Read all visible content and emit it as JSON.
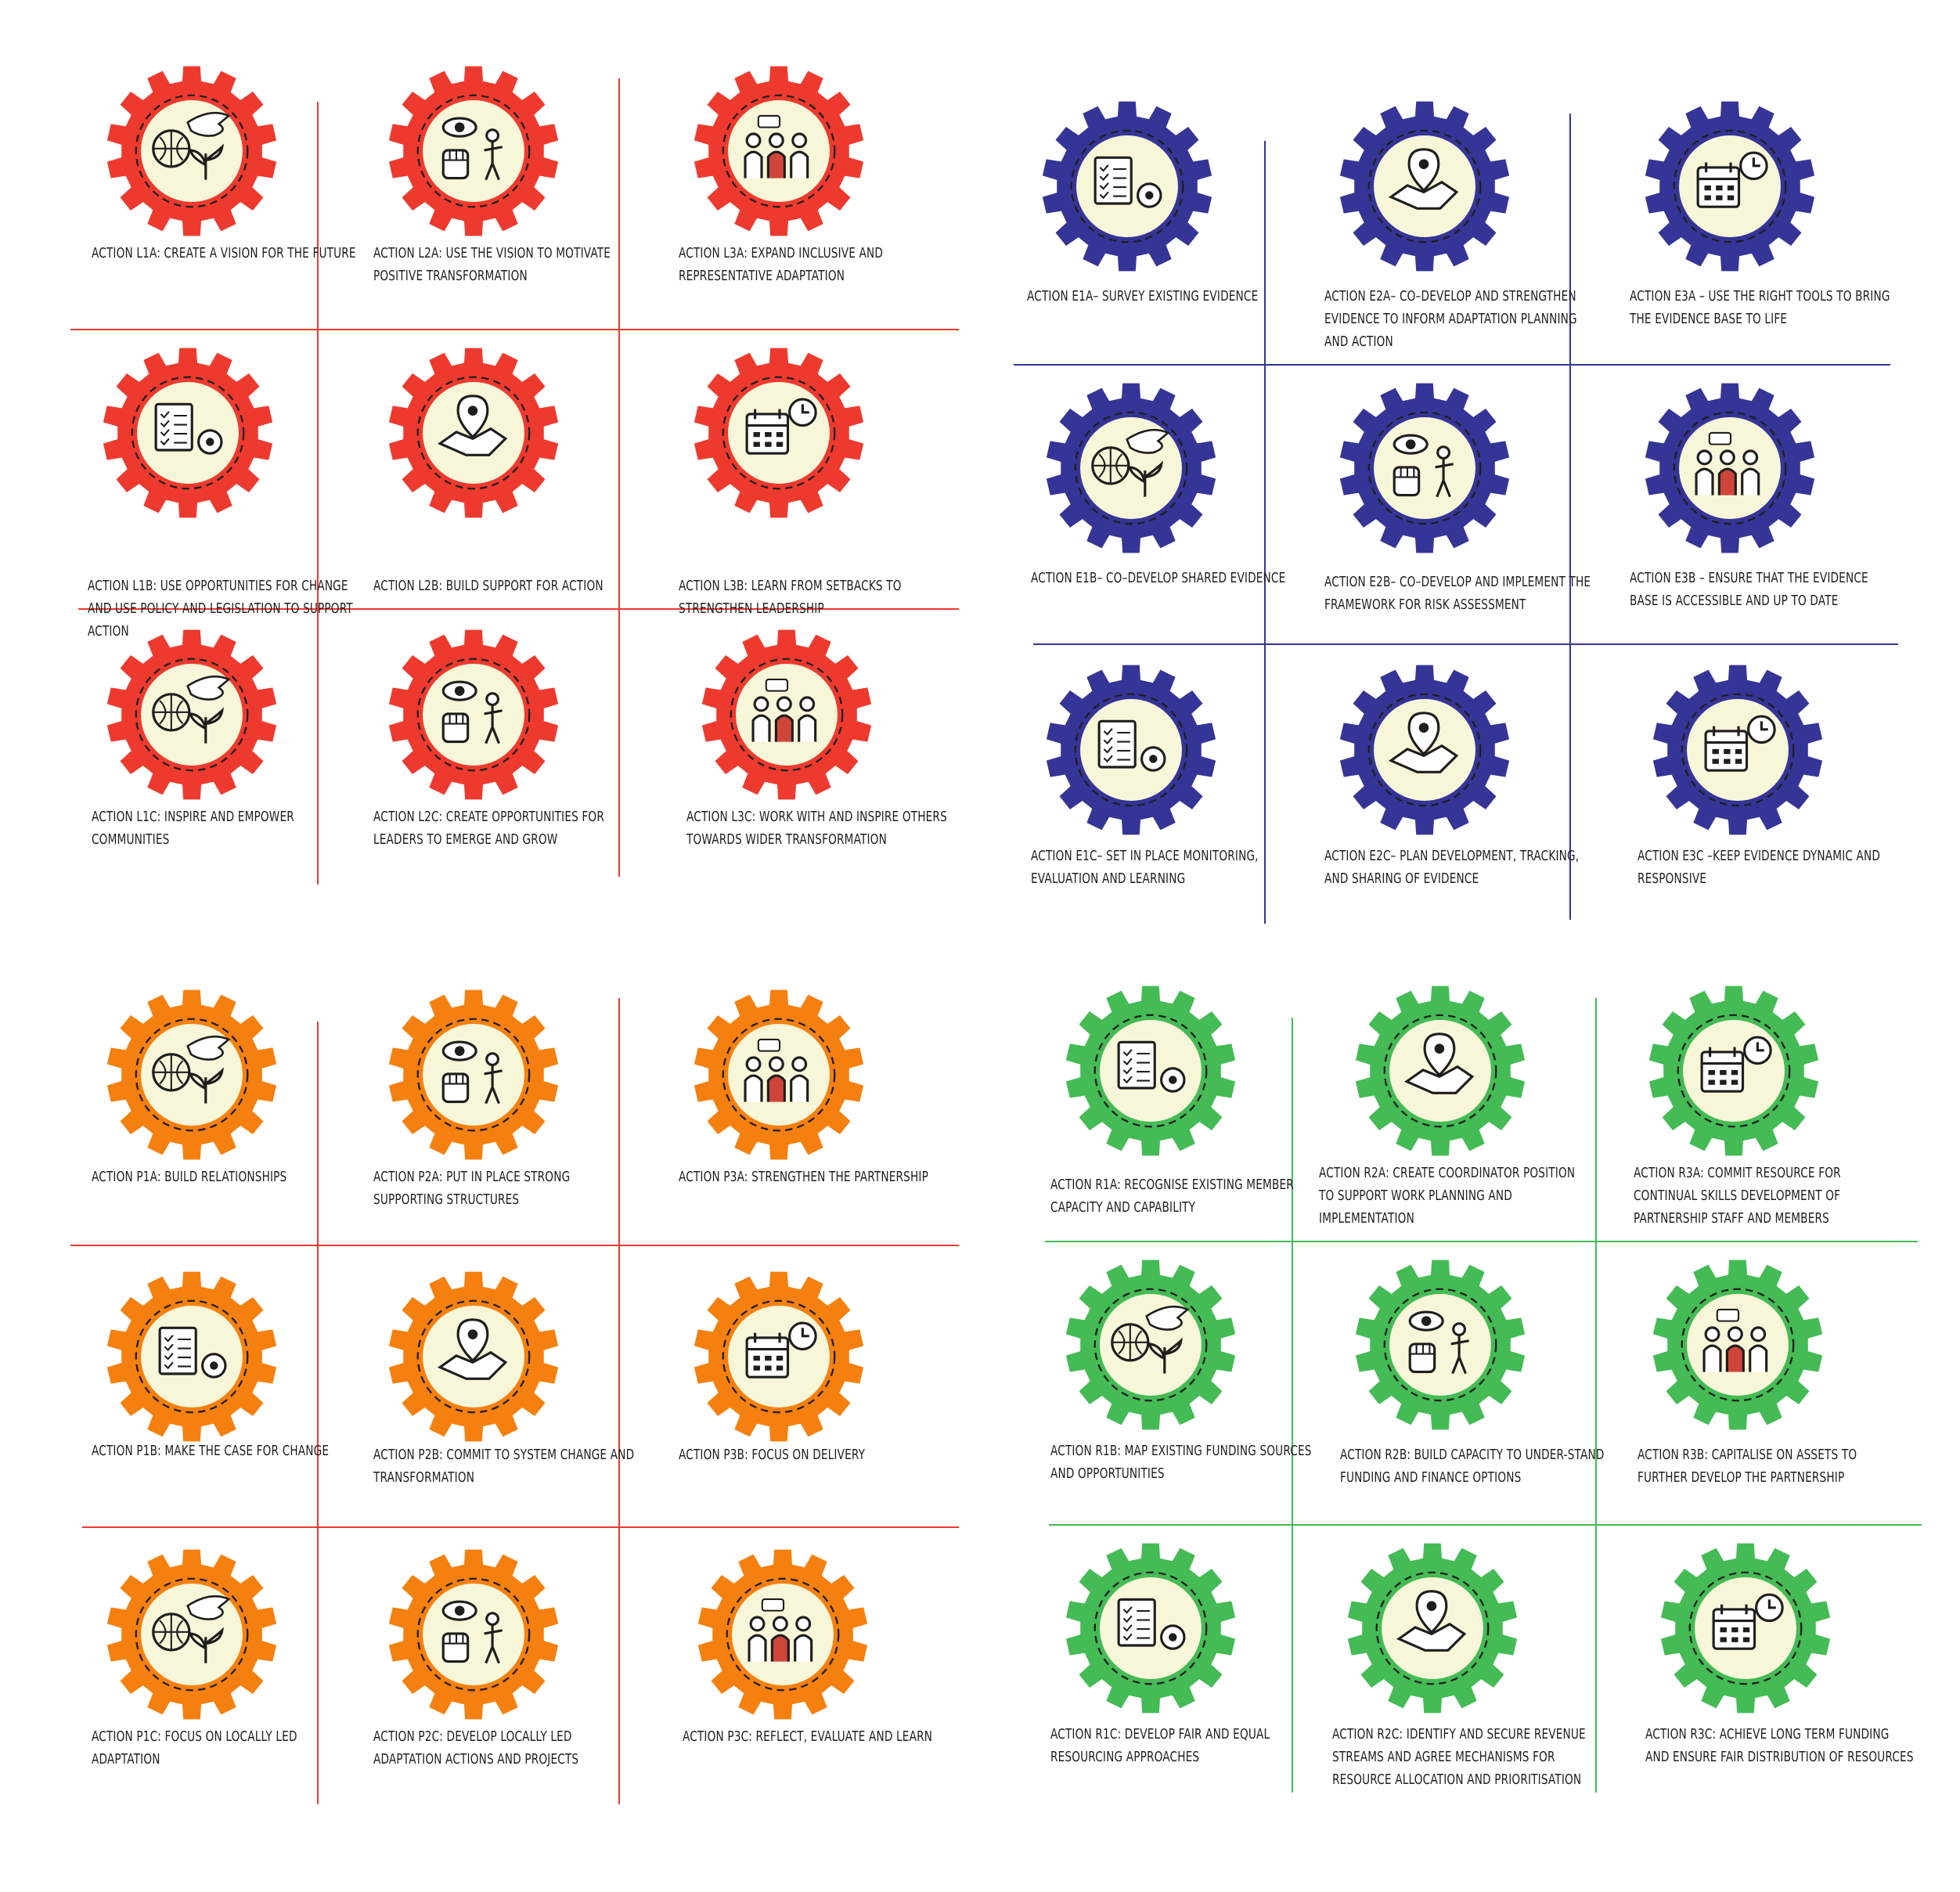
{
  "panels": [
    {
      "id": "leadership",
      "color": "#ee3a2e",
      "line_color": "#ee3a2e",
      "actions": [
        {
          "label": "Action L1A: Create a vision for the future",
          "icon": "dove-globe-plant-icon"
        },
        {
          "label": "Action L2A: Use the vision to motivate positive transformation",
          "icon": "eye-fist-stairs-icon"
        },
        {
          "label": "Action L3A: Expand inclusive and representative adaptation",
          "icon": "ear-people-wheelchair-icon"
        },
        {
          "label": "Action L1B: Use opportunities for change and use policy and legislation to support action",
          "icon": "gears-courthouse-handshake-icon"
        },
        {
          "label": "Action L2B: Build support for action",
          "icon": "checklist-megaphone-crowd-icon"
        },
        {
          "label": "Action L3B: Learn from setbacks to strengthen leadership",
          "icon": "gauge-meeting-climb-icon"
        },
        {
          "label": "Action L1C: Inspire and empower communities",
          "icon": "heart-hands-climbing-icon"
        },
        {
          "label": "Action L2C: Create opportunities for leaders to emerge and grow",
          "icon": "fist-flag-boulder-icon"
        },
        {
          "label": "Action L3C: Work with and inspire others towards wider transformation",
          "icon": "group-network-calendar-icon"
        }
      ]
    },
    {
      "id": "evidence",
      "color": "#353597",
      "line_color": "#353597",
      "actions": [
        {
          "label": "Action E1A– Survey existing evidence",
          "icon": "desk-computer-documents-icon"
        },
        {
          "label": "Action E2A– Co–develop and strengthen evidence to inform adaptation planning and action",
          "icon": "video-meeting-puzzle-icon"
        },
        {
          "label": "Action E3A – Use the right tools to bring the evidence base to life",
          "icon": "brain-tools-dashboard-icon"
        },
        {
          "label": "Action E1B– Co–develop shared evidence",
          "icon": "handshake-location-target-icon"
        },
        {
          "label": "Action E2B– Co–develop and implement the framework for risk assessment",
          "icon": "newspaper-storm-globe-icon"
        },
        {
          "label": "Action E3B – Ensure that the evidence base is accessible and up to date",
          "icon": "eye-funnel-calendar-icon"
        },
        {
          "label": "Action E1C– Set in place monitoring, evaluation and learning",
          "icon": "moneybag-clock-chart-icon"
        },
        {
          "label": "Action E2C– Plan development, tracking, and sharing of evidence",
          "icon": "shapes-funnel-hand-icon"
        },
        {
          "label": "Action E3C –Keep evidence dynamic and responsive",
          "icon": "leaf-people-gears-icon"
        }
      ]
    },
    {
      "id": "partnership",
      "color": "#f5800f",
      "line_color": "#ee3a2e",
      "actions": [
        {
          "label": "Action P1A: Build relationships",
          "icon": "meeting-location-handshake-icon"
        },
        {
          "label": "Action P2A: Put in place strong supporting structures",
          "icon": "handshake-magnifier-team-icon"
        },
        {
          "label": "Action P3A: Strengthen the partnership",
          "icon": "arrows-fist-stairs-icon"
        },
        {
          "label": "Action P1B: Make the case for change",
          "icon": "change-sign-handshake-icon"
        },
        {
          "label": "Action P2B: Commit to system change and transformation",
          "icon": "handshake-gear-group-icon"
        },
        {
          "label": "Action P3B: Focus on delivery",
          "icon": "gauge-target-screen-icon"
        },
        {
          "label": "Action P1C: Focus on locally led adaptation",
          "icon": "meeting-eye-location-icon"
        },
        {
          "label": "Action P2C: Develop locally led adaptation actions and projects",
          "icon": "hands-people-stairs-icon"
        },
        {
          "label": "Action P3C: Reflect, evaluate and learn",
          "icon": "target-handshake-graduate-icon"
        }
      ]
    },
    {
      "id": "resourcing",
      "color": "#44bb55",
      "line_color": "#44bb55",
      "actions": [
        {
          "label": "Action R1A: Recognise existing member capacity and capability",
          "icon": "skills-team-hand-icon"
        },
        {
          "label": "Action R2A: Create coordinator position to support work planning and implementation",
          "icon": "desk-clock-checklist-icon"
        },
        {
          "label": "Action R3A: Commit resource for continual skills development of partnership staff and members",
          "icon": "teacher-board-graduate-icon"
        },
        {
          "label": "Action R1B: Map existing funding sources and opportunities",
          "icon": "handshake-moneybag-document-icon"
        },
        {
          "label": "Action R2B:  Build capacity to under-stand funding and finance options",
          "icon": "graduate-chart-team-icon"
        },
        {
          "label": "Action R3B: Capitalise on assets to further develop the partnership",
          "icon": "speaker-fist-crowd-icon"
        },
        {
          "label": "Action R1C: Develop fair and equal resourcing approaches",
          "icon": "team-map-magnifier-icon"
        },
        {
          "label": "Action R2C:  Identify and secure revenue streams and agree mechanisms for resource allocation and prioritisation",
          "icon": "piggybank-recycle-muscle-icon"
        },
        {
          "label": "Action R3C: Achieve long term funding and ensure fair distribution of resources",
          "icon": "moneybag-mountain-climber-icon"
        }
      ]
    }
  ]
}
